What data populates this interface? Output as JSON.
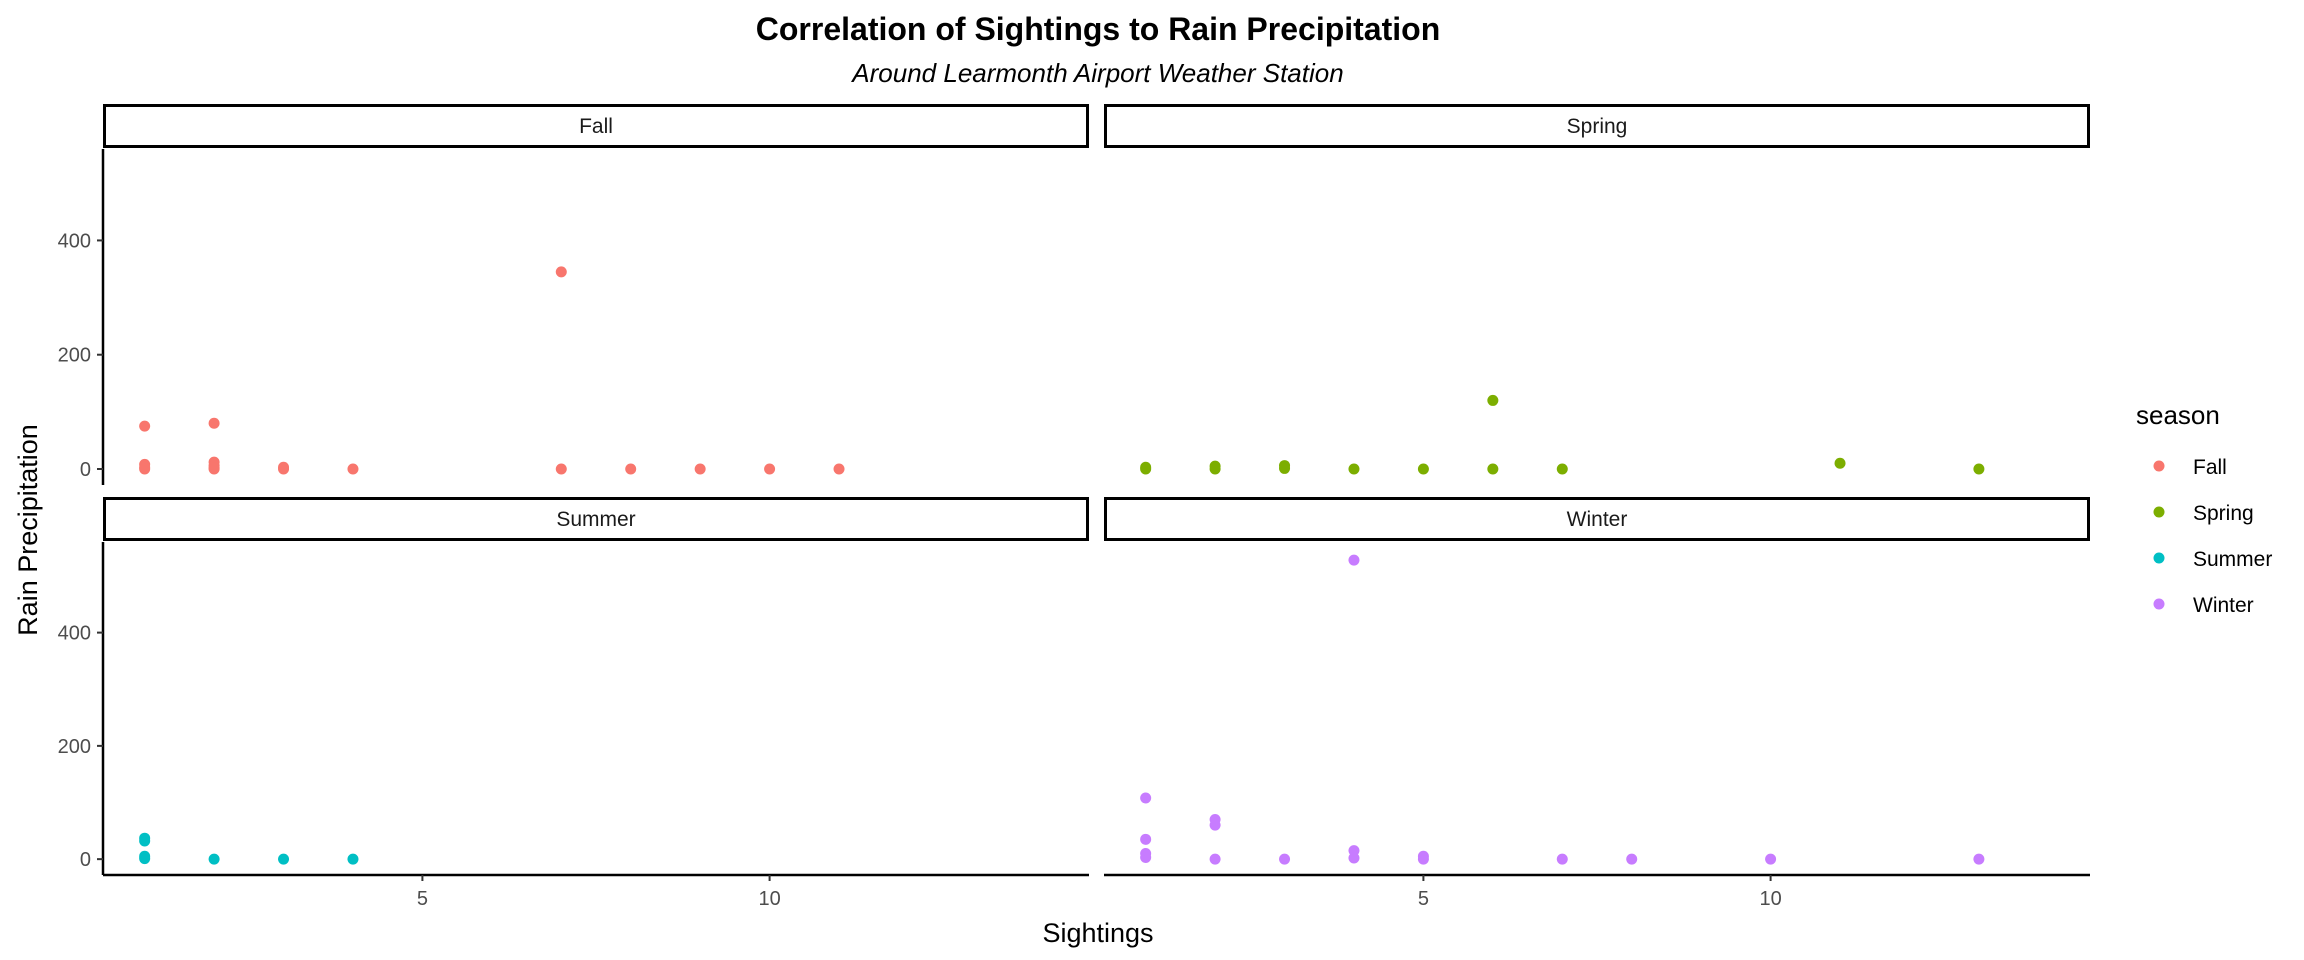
{
  "chart_data": {
    "type": "scatter",
    "title": "Correlation of Sightings to Rain Precipitation",
    "subtitle": "Around Learmonth Airport Weather Station",
    "xlabel": "Sightings",
    "ylabel": "Rain Precipitation",
    "xlim": [
      0.4,
      14.6
    ],
    "ylim": [
      -28,
      560
    ],
    "x_ticks": [
      5,
      10
    ],
    "y_ticks": [
      0,
      200,
      400
    ],
    "grid": false,
    "legend": {
      "title": "season",
      "position": "right",
      "entries": [
        {
          "label": "Fall",
          "color": "#F8766D"
        },
        {
          "label": "Spring",
          "color": "#7CAE00"
        },
        {
          "label": "Summer",
          "color": "#00BFC4"
        },
        {
          "label": "Winter",
          "color": "#C77CFF"
        }
      ]
    },
    "facets": [
      {
        "label": "Fall",
        "color": "#F8766D",
        "points": [
          [
            1,
            75
          ],
          [
            1,
            8
          ],
          [
            1,
            3
          ],
          [
            1,
            0
          ],
          [
            2,
            80
          ],
          [
            2,
            12
          ],
          [
            2,
            6
          ],
          [
            2,
            2
          ],
          [
            2,
            0
          ],
          [
            3,
            3
          ],
          [
            3,
            0
          ],
          [
            4,
            0
          ],
          [
            7,
            345
          ],
          [
            7,
            0
          ],
          [
            8,
            0
          ],
          [
            9,
            0
          ],
          [
            10,
            0
          ],
          [
            11,
            0
          ]
        ]
      },
      {
        "label": "Spring",
        "color": "#7CAE00",
        "points": [
          [
            1,
            3
          ],
          [
            1,
            0
          ],
          [
            2,
            5
          ],
          [
            2,
            0
          ],
          [
            3,
            6
          ],
          [
            3,
            1
          ],
          [
            4,
            0
          ],
          [
            5,
            0
          ],
          [
            6,
            120
          ],
          [
            6,
            0
          ],
          [
            7,
            0
          ],
          [
            11,
            10
          ],
          [
            13,
            0
          ]
        ]
      },
      {
        "label": "Summer",
        "color": "#00BFC4",
        "points": [
          [
            1,
            37
          ],
          [
            1,
            32
          ],
          [
            1,
            5
          ],
          [
            1,
            1
          ],
          [
            2,
            0
          ],
          [
            3,
            0
          ],
          [
            4,
            0
          ]
        ]
      },
      {
        "label": "Winter",
        "color": "#C77CFF",
        "points": [
          [
            1,
            108
          ],
          [
            1,
            35
          ],
          [
            1,
            10
          ],
          [
            1,
            3
          ],
          [
            2,
            70
          ],
          [
            2,
            60
          ],
          [
            2,
            0
          ],
          [
            3,
            0
          ],
          [
            4,
            528
          ],
          [
            4,
            15
          ],
          [
            4,
            2
          ],
          [
            5,
            5
          ],
          [
            5,
            0
          ],
          [
            7,
            0
          ],
          [
            8,
            0
          ],
          [
            10,
            0
          ],
          [
            13,
            0
          ]
        ]
      }
    ]
  }
}
